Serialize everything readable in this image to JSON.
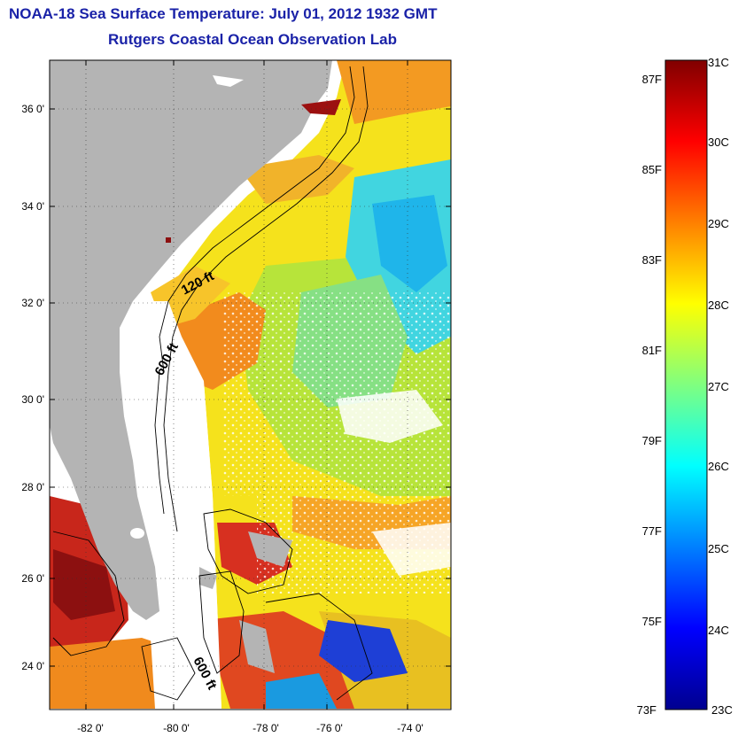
{
  "title": {
    "line1": "NOAA-18 Sea Surface Temperature:  July 01, 2012 1932 GMT",
    "line2": "Rutgers Coastal Ocean Observation Lab"
  },
  "map": {
    "lat_ticks": [
      "36 0'",
      "34 0'",
      "32 0'",
      "30 0'",
      "28 0'",
      "26 0'",
      "24 0'"
    ],
    "lon_ticks": [
      "-82 0'",
      "-80 0'",
      "-78 0'",
      "-76 0'",
      "-74 0'"
    ],
    "contour_labels": {
      "shelf_120": "120 ft",
      "shelf_600_north": "600 ft",
      "shelf_600_south": "600 ft"
    },
    "colors": {
      "land": "#b4b4b4",
      "no_data": "#ffffff",
      "contour": "#000000"
    }
  },
  "colorbar": {
    "celsius": [
      "31C",
      "30C",
      "29C",
      "28C",
      "27C",
      "26C",
      "25C",
      "24C",
      "23C"
    ],
    "fahrenheit": [
      "87F",
      "85F",
      "83F",
      "81F",
      "79F",
      "77F",
      "75F",
      "73F"
    ],
    "range_c": [
      23,
      31
    ],
    "colormap": "jet"
  }
}
